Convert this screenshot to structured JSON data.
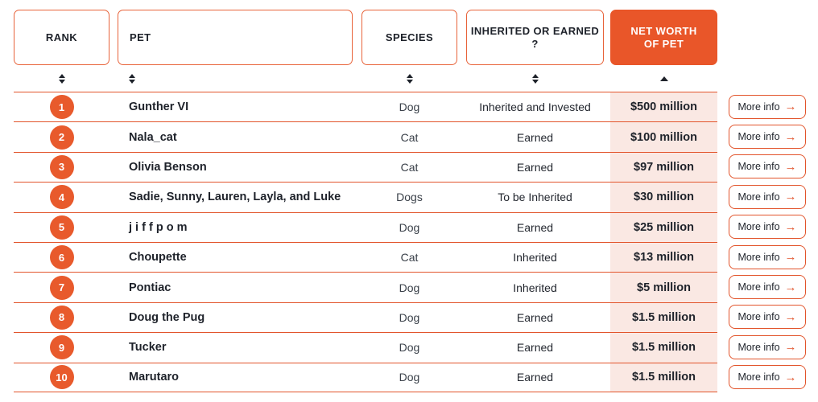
{
  "theme": {
    "accent_orange": "#E95629",
    "circle_orange": "#E85A2C",
    "row_line_orange": "#E2542B",
    "networth_column_pink": "#FAE8E3",
    "text_dark": "#1E222A",
    "text_white": "#FFFFFF"
  },
  "icons": {
    "sortable_columns": "sort-both-icon",
    "sorted_column": "sort-up-icon",
    "more_info_button": "arrow-right-icon"
  },
  "header": {
    "columns": [
      {
        "id": "rank",
        "label": "RANK",
        "sort_state": "sortable"
      },
      {
        "id": "pet",
        "label": "PET",
        "sort_state": "sortable"
      },
      {
        "id": "species",
        "label": "SPECIES",
        "sort_state": "sortable"
      },
      {
        "id": "inherited_or_earned",
        "label": "INHERITED OR EARNED ?",
        "sort_state": "sortable"
      },
      {
        "id": "net_worth",
        "label": "NET WORTH OF PET",
        "sort_state": "sorted",
        "highlighted": true
      }
    ]
  },
  "buttons": {
    "more_info_label": "More info",
    "arrow": "→"
  },
  "rows": [
    {
      "rank": "1",
      "pet": "Gunther VI",
      "species": "Dog",
      "inherited_or_earned": "Inherited and Invested",
      "net_worth": "$500 million"
    },
    {
      "rank": "2",
      "pet": "Nala_cat",
      "species": "Cat",
      "inherited_or_earned": "Earned",
      "net_worth": "$100 million"
    },
    {
      "rank": "3",
      "pet": "Olivia Benson",
      "species": "Cat",
      "inherited_or_earned": "Earned",
      "net_worth": "$97 million"
    },
    {
      "rank": "4",
      "pet": "Sadie, Sunny, Lauren, Layla, and Luke",
      "species": "Dogs",
      "inherited_or_earned": "To be Inherited",
      "net_worth": "$30 million"
    },
    {
      "rank": "5",
      "pet": "j i f f p o m",
      "species": "Dog",
      "inherited_or_earned": "Earned",
      "net_worth": "$25 million"
    },
    {
      "rank": "6",
      "pet": "Choupette",
      "species": "Cat",
      "inherited_or_earned": "Inherited",
      "net_worth": "$13 million"
    },
    {
      "rank": "7",
      "pet": "Pontiac",
      "species": "Dog",
      "inherited_or_earned": "Inherited",
      "net_worth": "$5 million"
    },
    {
      "rank": "8",
      "pet": "Doug the Pug",
      "species": "Dog",
      "inherited_or_earned": "Earned",
      "net_worth": "$1.5 million"
    },
    {
      "rank": "9",
      "pet": "Tucker",
      "species": "Dog",
      "inherited_or_earned": "Earned",
      "net_worth": "$1.5 million"
    },
    {
      "rank": "10",
      "pet": "Marutaro",
      "species": "Dog",
      "inherited_or_earned": "Earned",
      "net_worth": "$1.5 million"
    }
  ]
}
